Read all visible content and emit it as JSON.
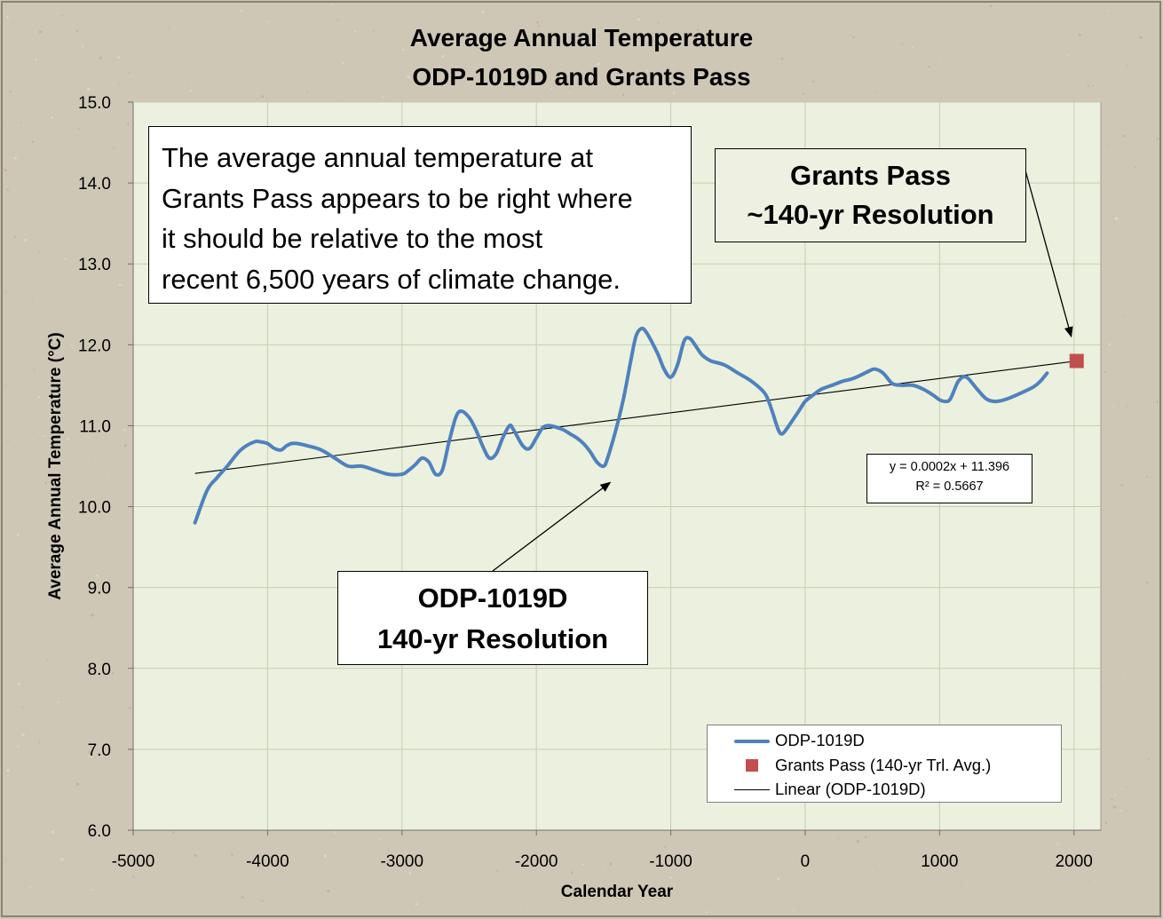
{
  "chart_data": {
    "type": "line",
    "title": "Average Annual Temperature",
    "subtitle": "ODP-1019D and Grants Pass",
    "xlabel": "Calendar Year",
    "ylabel": "Average Annual Temperature (°C)",
    "xlim": [
      -5000,
      2200
    ],
    "ylim": [
      6.0,
      15.0
    ],
    "x_ticks": [
      -5000,
      -4000,
      -3000,
      -2000,
      -1000,
      0,
      1000,
      2000
    ],
    "y_ticks": [
      6.0,
      7.0,
      8.0,
      9.0,
      10.0,
      11.0,
      12.0,
      13.0,
      14.0,
      15.0
    ],
    "x_tick_labels": [
      "-5000",
      "-4000",
      "-3000",
      "-2000",
      "-1000",
      "0",
      "1000",
      "2000"
    ],
    "y_tick_labels": [
      "6.0",
      "7.0",
      "8.0",
      "9.0",
      "10.0",
      "11.0",
      "12.0",
      "13.0",
      "14.0",
      "15.0"
    ],
    "grid": "vertical and horizontal",
    "legend_position": "bottom-right",
    "series": [
      {
        "name": "ODP-1019D",
        "kind": "line",
        "color": "#4f81bd",
        "x": [
          -4540,
          -4450,
          -4380,
          -4300,
          -4200,
          -4100,
          -4050,
          -4000,
          -3950,
          -3900,
          -3860,
          -3820,
          -3780,
          -3700,
          -3600,
          -3500,
          -3400,
          -3300,
          -3200,
          -3100,
          -3000,
          -2950,
          -2900,
          -2850,
          -2800,
          -2750,
          -2700,
          -2650,
          -2600,
          -2560,
          -2500,
          -2450,
          -2400,
          -2350,
          -2300,
          -2250,
          -2200,
          -2170,
          -2100,
          -2050,
          -2000,
          -1950,
          -1900,
          -1850,
          -1800,
          -1750,
          -1700,
          -1650,
          -1600,
          -1550,
          -1500,
          -1470,
          -1400,
          -1350,
          -1300,
          -1260,
          -1220,
          -1180,
          -1100,
          -1050,
          -1000,
          -950,
          -900,
          -860,
          -820,
          -780,
          -750,
          -700,
          -600,
          -500,
          -400,
          -300,
          -250,
          -200,
          -170,
          -130,
          -80,
          -40,
          0,
          60,
          120,
          200,
          280,
          350,
          420,
          480,
          520,
          580,
          650,
          720,
          800,
          880,
          950,
          1000,
          1040,
          1080,
          1140,
          1200,
          1280,
          1350,
          1420,
          1500,
          1600,
          1700,
          1750,
          1800
        ],
        "y": [
          9.8,
          10.2,
          10.35,
          10.5,
          10.7,
          10.8,
          10.8,
          10.78,
          10.72,
          10.7,
          10.75,
          10.78,
          10.78,
          10.75,
          10.7,
          10.6,
          10.5,
          10.5,
          10.45,
          10.4,
          10.4,
          10.45,
          10.52,
          10.6,
          10.55,
          10.4,
          10.45,
          10.8,
          11.1,
          11.18,
          11.1,
          10.95,
          10.75,
          10.6,
          10.65,
          10.85,
          11.0,
          10.95,
          10.75,
          10.72,
          10.85,
          10.98,
          11.0,
          10.98,
          10.95,
          10.9,
          10.85,
          10.78,
          10.68,
          10.55,
          10.5,
          10.6,
          11.0,
          11.35,
          11.78,
          12.1,
          12.2,
          12.15,
          11.9,
          11.7,
          11.6,
          11.75,
          12.05,
          12.08,
          12.0,
          11.9,
          11.85,
          11.8,
          11.75,
          11.65,
          11.55,
          11.4,
          11.2,
          10.95,
          10.9,
          10.98,
          11.1,
          11.2,
          11.3,
          11.38,
          11.45,
          11.5,
          11.55,
          11.58,
          11.63,
          11.68,
          11.7,
          11.65,
          11.52,
          11.5,
          11.5,
          11.45,
          11.38,
          11.32,
          11.3,
          11.33,
          11.55,
          11.6,
          11.45,
          11.33,
          11.3,
          11.33,
          11.4,
          11.48,
          11.55,
          11.65
        ]
      },
      {
        "name": "Grants Pass (140-yr Trl. Avg.)",
        "kind": "point",
        "color": "#c0504d",
        "x": [
          2020
        ],
        "y": [
          11.8
        ]
      },
      {
        "name": "Linear (ODP-1019D)",
        "kind": "trendline",
        "color": "#000000",
        "x": [
          -4540,
          2020
        ],
        "y": [
          10.41,
          11.8
        ]
      }
    ],
    "trendline_equation": "y = 0.0002x + 11.396",
    "trendline_r2": "R² = 0.5667",
    "annotations": [
      {
        "id": "note",
        "lines": [
          "The average annual temperature at",
          "Grants Pass appears to be right where",
          "it should be relative to the most",
          "recent 6,500 years of climate change."
        ]
      },
      {
        "id": "grants",
        "lines": [
          "Grants Pass",
          "~140-yr Resolution"
        ],
        "arrow_to": {
          "x": 1980,
          "y": 12.1
        }
      },
      {
        "id": "odp",
        "lines": [
          "ODP-1019D",
          "140-yr Resolution"
        ],
        "arrow_to": {
          "x": -1450,
          "y": 10.3
        }
      }
    ]
  },
  "colors": {
    "background": "#cfc7b6",
    "plot_area": "#ebf1de",
    "gridline": "#c6cdb3",
    "odp_line": "#4f81bd",
    "grants_point": "#c0504d"
  }
}
